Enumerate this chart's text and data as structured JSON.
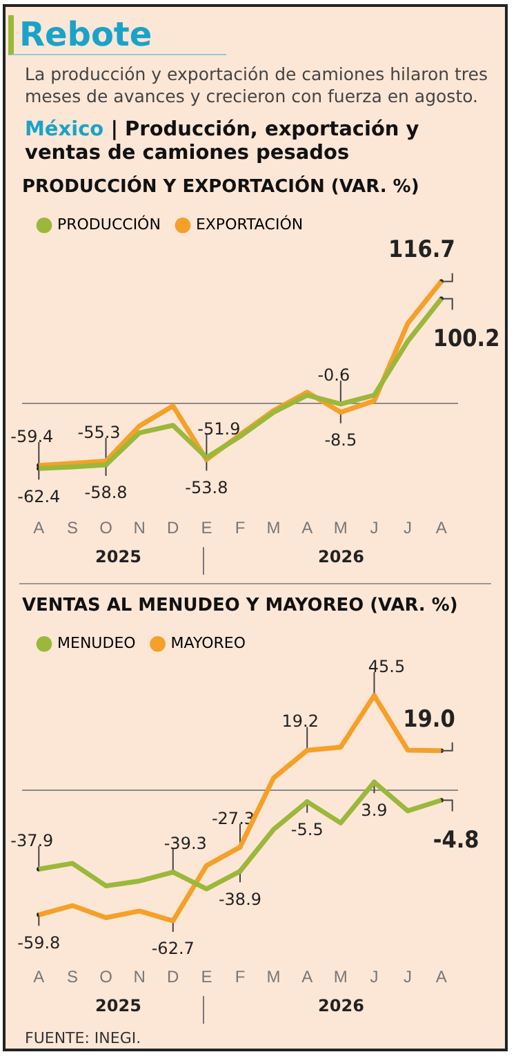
{
  "chart_data": [
    {
      "type": "line",
      "title": "PRODUCCIÓN Y EXPORTACIÓN (VAR. %)",
      "annotations": [
        "Rebote",
        "La producción y exportación de camiones hilaron tres meses de avances y crecieron con fuerza en agosto.",
        "México",
        "| Producción, exportación y ventas de camiones pesados",
        "2025",
        "2026"
      ],
      "categories": [
        "A",
        "S",
        "O",
        "N",
        "D",
        "E",
        "F",
        "M",
        "A",
        "M",
        "J",
        "J",
        "A"
      ],
      "series": [
        {
          "name": "PRODUCCIÓN",
          "color": "#9bb83a",
          "values": [
            -62.4,
            -60.8,
            -58.8,
            -28.2,
            -21,
            -51.9,
            -31.6,
            -8.6,
            7.9,
            -0.6,
            7.9,
            59.5,
            100.2
          ],
          "value_labels": [
            "-62.4",
            null,
            "-58.8",
            null,
            null,
            "-51.9",
            null,
            null,
            null,
            "-0.6",
            null,
            null,
            "100.2"
          ]
        },
        {
          "name": "EXPORTACIÓN",
          "color": "#f5a028",
          "values": [
            -59.4,
            -57.4,
            -55.3,
            -21.6,
            -2.4,
            -53.8,
            -29.9,
            -6.9,
            10.7,
            -8.5,
            2.4,
            76.6,
            116.7
          ],
          "value_labels": [
            "-59.4",
            null,
            "-55.3",
            null,
            null,
            "-53.8",
            null,
            null,
            null,
            "-8.5",
            null,
            null,
            "116.7"
          ]
        }
      ],
      "tick_labels": "x",
      "grid": false,
      "legend": "top left",
      "marker": "none",
      "ref_lines": [
        {
          "axis": "y",
          "value": 0,
          "color": "#8a8a8a"
        }
      ]
    },
    {
      "type": "line",
      "title": "VENTAS AL MENUDEO Y MAYOREO (VAR. %)",
      "annotations": [
        "2025",
        "2026",
        "FUENTE:  INEGI."
      ],
      "categories": [
        "A",
        "S",
        "O",
        "N",
        "D",
        "E",
        "F",
        "M",
        "A",
        "M",
        "J",
        "J",
        "A"
      ],
      "series": [
        {
          "name": "MENUDEO",
          "color": "#9bb83a",
          "values": [
            -37.9,
            -35.1,
            -45.9,
            -43.6,
            -39.3,
            -47.4,
            -38.9,
            -18.8,
            -5.5,
            -15.7,
            3.9,
            -9.9,
            -4.8
          ],
          "value_labels": [
            "-37.9",
            null,
            null,
            null,
            "-39.3",
            null,
            "-38.9",
            null,
            "-5.5",
            null,
            "3.9",
            null,
            "-4.8"
          ]
        },
        {
          "name": "MAYOREO",
          "color": "#f5a028",
          "values": [
            -59.8,
            -55.4,
            -61.2,
            -58,
            -62.7,
            -36.2,
            -27.3,
            5.9,
            19.2,
            20.7,
            45.5,
            19.3,
            19.0
          ],
          "value_labels": [
            "-59.8",
            null,
            null,
            null,
            "-62.7",
            null,
            "-27.3",
            null,
            "19.2",
            null,
            "45.5",
            null,
            "19.0"
          ]
        }
      ],
      "tick_labels": "x",
      "grid": false,
      "legend": "top left",
      "marker": "none",
      "ref_lines": [
        {
          "axis": "y",
          "value": 0,
          "color": "#8a8a8a"
        }
      ]
    }
  ]
}
